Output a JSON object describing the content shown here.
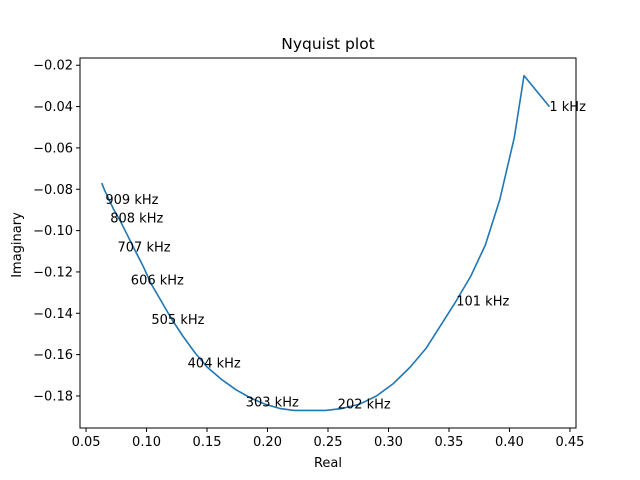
{
  "chart_data": {
    "type": "line",
    "title": "Nyquist plot",
    "xlabel": "Real",
    "ylabel": "Imaginary",
    "xlim": [
      0.045,
      0.455
    ],
    "ylim": [
      -0.1955,
      -0.0165
    ],
    "xticks": [
      0.05,
      0.1,
      0.15,
      0.2,
      0.25,
      0.3,
      0.35,
      0.4,
      0.45
    ],
    "xtick_labels": [
      "0.05",
      "0.10",
      "0.15",
      "0.20",
      "0.25",
      "0.30",
      "0.35",
      "0.40",
      "0.45"
    ],
    "yticks": [
      -0.18,
      -0.16,
      -0.14,
      -0.12,
      -0.1,
      -0.08,
      -0.06,
      -0.04,
      -0.02
    ],
    "ytick_labels": [
      "−0.18",
      "−0.16",
      "−0.14",
      "−0.12",
      "−0.10",
      "−0.08",
      "−0.06",
      "−0.04",
      "−0.02"
    ],
    "grid": false,
    "line_color": "#1f77b4",
    "series": [
      {
        "x": [
          0.433,
          0.412,
          0.404,
          0.392,
          0.38,
          0.368,
          0.356,
          0.343,
          0.331,
          0.318,
          0.304,
          0.29,
          0.276,
          0.262,
          0.248,
          0.234,
          0.222,
          0.21,
          0.198,
          0.186,
          0.174,
          0.162,
          0.15,
          0.14,
          0.13,
          0.121,
          0.112,
          0.104,
          0.097,
          0.09,
          0.084,
          0.078,
          0.073,
          0.069,
          0.065,
          0.063
        ],
        "y": [
          -0.04,
          -0.025,
          -0.055,
          -0.085,
          -0.107,
          -0.122,
          -0.134,
          -0.146,
          -0.157,
          -0.166,
          -0.174,
          -0.18,
          -0.184,
          -0.186,
          -0.187,
          -0.187,
          -0.187,
          -0.186,
          -0.184,
          -0.181,
          -0.177,
          -0.172,
          -0.166,
          -0.159,
          -0.151,
          -0.143,
          -0.134,
          -0.126,
          -0.117,
          -0.109,
          -0.102,
          -0.095,
          -0.09,
          -0.085,
          -0.08,
          -0.077
        ]
      }
    ],
    "annotations": [
      {
        "text": "1 kHz",
        "x": 0.433,
        "y": -0.04
      },
      {
        "text": "101 kHz",
        "x": 0.356,
        "y": -0.134
      },
      {
        "text": "202 kHz",
        "x": 0.258,
        "y": -0.184
      },
      {
        "text": "303 kHz",
        "x": 0.182,
        "y": -0.183
      },
      {
        "text": "404 kHz",
        "x": 0.134,
        "y": -0.164
      },
      {
        "text": "505 kHz",
        "x": 0.104,
        "y": -0.143
      },
      {
        "text": "606 kHz",
        "x": 0.087,
        "y": -0.124
      },
      {
        "text": "707 kHz",
        "x": 0.076,
        "y": -0.108
      },
      {
        "text": "808 kHz",
        "x": 0.07,
        "y": -0.094
      },
      {
        "text": "909 kHz",
        "x": 0.066,
        "y": -0.085
      }
    ]
  }
}
